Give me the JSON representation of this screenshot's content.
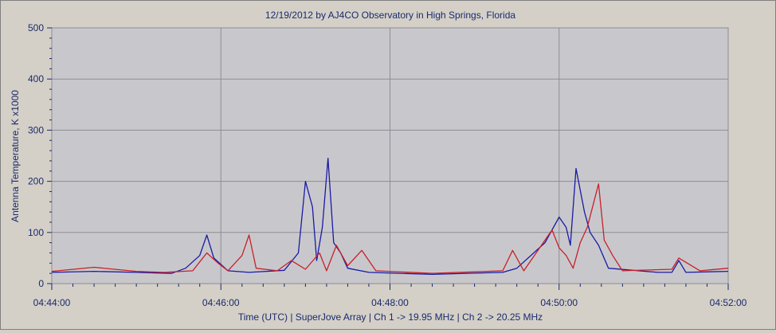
{
  "chart_data": {
    "type": "line",
    "title": "12/19/2012  by  AJ4CO Observatory  in  High Springs, Florida",
    "xlabel": "Time (UTC)  |  SuperJove Array  |  Ch 1 -> 19.95 MHz  |  Ch 2 -> 20.25 MHz",
    "ylabel": "Antenna Temperature, K x1000",
    "xlim": [
      "04:44:00",
      "04:52:00"
    ],
    "ylim": [
      0,
      500
    ],
    "x_ticks": [
      "04:44:00",
      "04:46:00",
      "04:48:00",
      "04:50:00",
      "04:52:00"
    ],
    "y_ticks": [
      "0",
      "100",
      "200",
      "300",
      "400",
      "500"
    ],
    "grid": true,
    "series": [
      {
        "color": "#1a1aa6",
        "x": [
          "04:44:00",
          "04:44:30",
          "04:45:00",
          "04:45:25",
          "04:45:35",
          "04:45:45",
          "04:45:50",
          "04:45:55",
          "04:46:05",
          "04:46:20",
          "04:46:45",
          "04:46:55",
          "04:47:00",
          "04:47:05",
          "04:47:08",
          "04:47:12",
          "04:47:16",
          "04:47:20",
          "04:47:25",
          "04:47:30",
          "04:47:45",
          "04:48:30",
          "04:49:20",
          "04:49:30",
          "04:49:50",
          "04:50:00",
          "04:50:05",
          "04:50:08",
          "04:50:12",
          "04:50:18",
          "04:50:22",
          "04:50:28",
          "04:50:35",
          "04:51:10",
          "04:51:20",
          "04:51:25",
          "04:51:30",
          "04:52:00"
        ],
        "values": [
          22,
          24,
          22,
          20,
          30,
          55,
          95,
          50,
          25,
          22,
          26,
          60,
          200,
          150,
          45,
          110,
          245,
          80,
          60,
          30,
          22,
          18,
          22,
          30,
          80,
          130,
          110,
          75,
          225,
          140,
          100,
          75,
          30,
          22,
          22,
          45,
          22,
          24
        ]
      },
      {
        "color": "#c8202a",
        "x": [
          "04:44:00",
          "04:44:30",
          "04:45:00",
          "04:45:20",
          "04:45:40",
          "04:45:50",
          "04:45:58",
          "04:46:05",
          "04:46:15",
          "04:46:20",
          "04:46:25",
          "04:46:40",
          "04:46:50",
          "04:47:00",
          "04:47:10",
          "04:47:15",
          "04:47:22",
          "04:47:30",
          "04:47:40",
          "04:47:50",
          "04:48:30",
          "04:49:20",
          "04:49:27",
          "04:49:35",
          "04:49:55",
          "04:50:00",
          "04:50:05",
          "04:50:10",
          "04:50:15",
          "04:50:20",
          "04:50:28",
          "04:50:32",
          "04:50:38",
          "04:50:45",
          "04:51:20",
          "04:51:25",
          "04:51:40",
          "04:52:00"
        ],
        "values": [
          24,
          32,
          24,
          22,
          25,
          60,
          40,
          25,
          55,
          95,
          30,
          25,
          45,
          28,
          60,
          25,
          75,
          35,
          65,
          25,
          20,
          25,
          65,
          25,
          105,
          70,
          55,
          30,
          80,
          110,
          195,
          85,
          55,
          25,
          28,
          50,
          25,
          30
        ]
      }
    ]
  }
}
